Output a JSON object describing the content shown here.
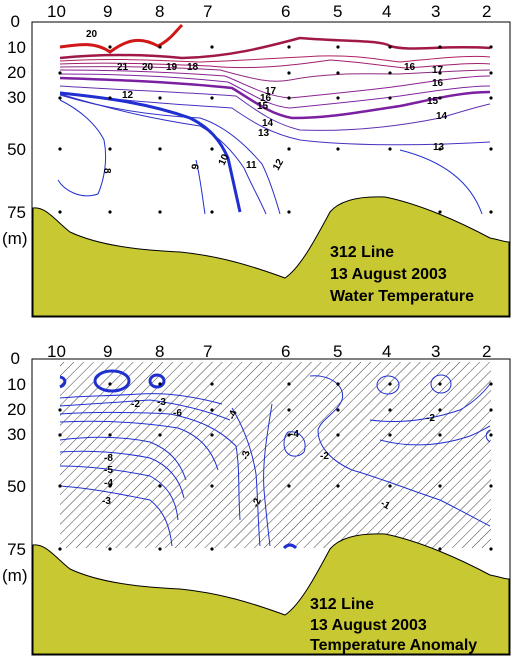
{
  "chart_data": [
    {
      "type": "contour",
      "title_lines": [
        "312 Line",
        "13 August 2003",
        "Water Temperature"
      ],
      "station_labels": [
        "10",
        "9",
        "8",
        "7",
        "6",
        "5",
        "4",
        "3",
        "2"
      ],
      "depth_tick_labels": [
        "0",
        "10",
        "20",
        "30",
        "50",
        "75"
      ],
      "depth_unit_label": "(m)",
      "contour_labels": [
        "20",
        "21",
        "20",
        "19",
        "18",
        "17",
        "16",
        "15",
        "14",
        "13",
        "12",
        "16",
        "17",
        "16",
        "15",
        "14",
        "13",
        "12",
        "11",
        "10",
        "9",
        "8"
      ],
      "colors": {
        "bottom": "#c8c832",
        "warm": "#d01818",
        "mid": "#7a20a0",
        "cool": "#2030d0"
      }
    },
    {
      "type": "contour",
      "title_lines": [
        "312 Line",
        "13 August 2003",
        "Temperature Anomaly"
      ],
      "station_labels": [
        "10",
        "9",
        "8",
        "7",
        "6",
        "5",
        "4",
        "3",
        "2"
      ],
      "depth_tick_labels": [
        "0",
        "10",
        "20",
        "30",
        "50",
        "75"
      ],
      "depth_unit_label": "(m)",
      "contour_labels": [
        "-2",
        "-3",
        "-6",
        "-4",
        "-8",
        "-5",
        "-4",
        "-3",
        "-4",
        "-3",
        "-2",
        "-1",
        "-2",
        "-2"
      ],
      "colors": {
        "bottom": "#c8c832",
        "hatch": "#404040",
        "line": "#2030d0"
      }
    }
  ]
}
